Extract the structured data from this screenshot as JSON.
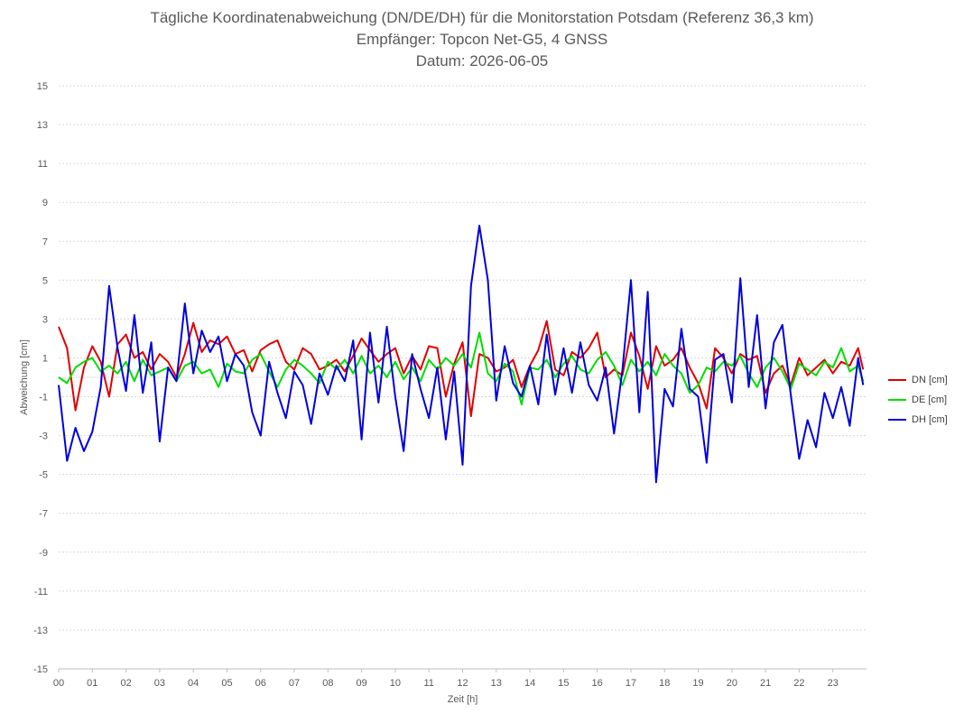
{
  "chart_data": {
    "type": "line",
    "title": "Tägliche Koordinatenabweichung (DN/DE/DH) für die Monitorstation Potsdam (Referenz 36,3 km)",
    "subtitle": "Empfänger: Topcon Net-G5, 4 GNSS",
    "date_line": "Datum: 2026-06-05",
    "xlabel": "Zeit [h]",
    "ylabel": "Abweichung [cm]",
    "xlim": [
      0,
      24
    ],
    "ylim": [
      -15,
      15
    ],
    "x_ticks": [
      "00",
      "01",
      "02",
      "03",
      "04",
      "05",
      "06",
      "07",
      "08",
      "09",
      "10",
      "11",
      "12",
      "13",
      "14",
      "15",
      "16",
      "17",
      "18",
      "19",
      "20",
      "21",
      "22",
      "23"
    ],
    "y_ticks": [
      "15",
      "13",
      "11",
      "9",
      "7",
      "5",
      "3",
      "1",
      "-1",
      "-3",
      "-5",
      "-7",
      "-9",
      "-11",
      "-13",
      "-15"
    ],
    "grid": "horizontal-dotted",
    "legend_position": "right",
    "series": [
      {
        "name": "DN [cm]",
        "color": "#e00000",
        "x": [
          0,
          0.25,
          0.5,
          0.75,
          1,
          1.25,
          1.5,
          1.75,
          2,
          2.25,
          2.5,
          2.75,
          3,
          3.25,
          3.5,
          3.75,
          4,
          4.25,
          4.5,
          4.75,
          5,
          5.25,
          5.5,
          5.75,
          6,
          6.25,
          6.5,
          6.75,
          7,
          7.25,
          7.5,
          7.75,
          8,
          8.25,
          8.5,
          8.75,
          9,
          9.25,
          9.5,
          9.75,
          10,
          10.25,
          10.5,
          10.75,
          11,
          11.25,
          11.5,
          11.75,
          12,
          12.25,
          12.5,
          12.75,
          13,
          13.25,
          13.5,
          13.75,
          14,
          14.25,
          14.5,
          14.75,
          15,
          15.25,
          15.5,
          15.75,
          16,
          16.25,
          16.5,
          16.75,
          17,
          17.25,
          17.5,
          17.75,
          18,
          18.25,
          18.5,
          18.75,
          19,
          19.25,
          19.5,
          19.75,
          20,
          20.25,
          20.5,
          20.75,
          21,
          21.25,
          21.5,
          21.75,
          22,
          22.25,
          22.5,
          22.75,
          23,
          23.25,
          23.5,
          23.75,
          23.9
        ],
        "y": [
          2.6,
          1.5,
          -1.7,
          0.5,
          1.6,
          0.8,
          -1.0,
          1.7,
          2.2,
          1.0,
          1.3,
          0.4,
          1.2,
          0.8,
          0.0,
          1.2,
          2.8,
          1.3,
          1.9,
          1.7,
          2.1,
          1.2,
          1.4,
          0.3,
          1.4,
          1.7,
          1.9,
          0.8,
          0.4,
          1.5,
          1.2,
          0.4,
          0.6,
          0.9,
          0.3,
          1.1,
          2.0,
          1.4,
          0.8,
          1.2,
          1.5,
          0.2,
          1.1,
          0.4,
          1.6,
          1.5,
          -1.0,
          0.7,
          1.8,
          -2.0,
          1.2,
          1.0,
          0.3,
          0.5,
          0.9,
          -0.5,
          0.6,
          1.4,
          2.9,
          0.4,
          0.1,
          1.3,
          1.0,
          1.5,
          2.3,
          0.0,
          0.4,
          0.1,
          2.3,
          1.1,
          -0.6,
          1.6,
          0.6,
          0.9,
          1.5,
          0.5,
          -0.3,
          -1.6,
          1.5,
          1.0,
          0.2,
          1.2,
          0.9,
          1.1,
          -0.8,
          0.2,
          0.6,
          -0.4,
          1.0,
          0.1,
          0.5,
          0.9,
          0.2,
          0.8,
          0.6,
          1.5,
          0.4
        ],
        "y_dummy": null
      },
      {
        "name": "DE [cm]",
        "color": "#00dd00",
        "x": [
          0,
          0.25,
          0.5,
          0.75,
          1,
          1.25,
          1.5,
          1.75,
          2,
          2.25,
          2.5,
          2.75,
          3,
          3.25,
          3.5,
          3.75,
          4,
          4.25,
          4.5,
          4.75,
          5,
          5.25,
          5.5,
          5.75,
          6,
          6.25,
          6.5,
          6.75,
          7,
          7.25,
          7.5,
          7.75,
          8,
          8.25,
          8.5,
          8.75,
          9,
          9.25,
          9.5,
          9.75,
          10,
          10.25,
          10.5,
          10.75,
          11,
          11.25,
          11.5,
          11.75,
          12,
          12.25,
          12.5,
          12.75,
          13,
          13.25,
          13.5,
          13.75,
          14,
          14.25,
          14.5,
          14.75,
          15,
          15.25,
          15.5,
          15.75,
          16,
          16.25,
          16.5,
          16.75,
          17,
          17.25,
          17.5,
          17.75,
          18,
          18.25,
          18.5,
          18.75,
          19,
          19.25,
          19.5,
          19.75,
          20,
          20.25,
          20.5,
          20.75,
          21,
          21.25,
          21.5,
          21.75,
          22,
          22.25,
          22.5,
          22.75,
          23,
          23.25,
          23.5,
          23.75,
          23.9
        ],
        "y": [
          0.0,
          -0.3,
          0.5,
          0.8,
          1.0,
          0.3,
          0.6,
          0.2,
          0.8,
          -0.2,
          0.9,
          0.1,
          0.3,
          0.5,
          -0.2,
          0.6,
          0.8,
          0.2,
          0.4,
          -0.5,
          0.7,
          0.3,
          0.2,
          0.9,
          1.2,
          0.3,
          -0.5,
          0.4,
          0.9,
          0.6,
          0.2,
          -0.3,
          0.8,
          0.4,
          0.9,
          0.2,
          1.1,
          0.2,
          0.6,
          0.0,
          0.8,
          -0.1,
          0.5,
          -0.2,
          0.9,
          0.4,
          1.0,
          0.6,
          1.2,
          0.5,
          2.3,
          0.2,
          -0.2,
          0.7,
          0.3,
          -1.4,
          0.5,
          0.4,
          0.9,
          0.0,
          0.7,
          1.1,
          0.4,
          0.2,
          0.9,
          1.3,
          0.6,
          -0.4,
          0.9,
          0.3,
          0.8,
          0.1,
          1.2,
          0.6,
          0.2,
          -0.8,
          -0.4,
          0.5,
          0.3,
          0.8,
          0.6,
          1.1,
          0.2,
          -0.5,
          0.5,
          1.0,
          0.3,
          -0.6,
          0.7,
          0.4,
          0.1,
          0.8,
          0.5,
          1.5,
          0.3,
          0.6,
          -0.2
        ],
        "y_dummy": null
      },
      {
        "name": "DH [cm]",
        "color": "#0000dd",
        "x": [
          0,
          0.25,
          0.5,
          0.75,
          1,
          1.25,
          1.5,
          1.75,
          2,
          2.25,
          2.5,
          2.75,
          3,
          3.25,
          3.5,
          3.75,
          4,
          4.25,
          4.5,
          4.75,
          5,
          5.25,
          5.5,
          5.75,
          6,
          6.25,
          6.5,
          6.75,
          7,
          7.25,
          7.5,
          7.75,
          8,
          8.25,
          8.5,
          8.75,
          9,
          9.25,
          9.5,
          9.75,
          10,
          10.25,
          10.5,
          10.75,
          11,
          11.25,
          11.5,
          11.75,
          12,
          12.25,
          12.5,
          12.75,
          13,
          13.25,
          13.5,
          13.75,
          14,
          14.25,
          14.5,
          14.75,
          15,
          15.25,
          15.5,
          15.75,
          16,
          16.25,
          16.5,
          16.75,
          17,
          17.25,
          17.5,
          17.75,
          18,
          18.25,
          18.5,
          18.75,
          19,
          19.25,
          19.5,
          19.75,
          20,
          20.25,
          20.5,
          20.75,
          21,
          21.25,
          21.5,
          21.75,
          22,
          22.25,
          22.5,
          22.75,
          23,
          23.25,
          23.5,
          23.75,
          23.9
        ],
        "y": [
          -0.4,
          -4.3,
          -2.6,
          -3.8,
          -2.8,
          -0.5,
          4.7,
          1.5,
          -0.7,
          3.2,
          -0.8,
          1.8,
          -3.3,
          0.5,
          -0.2,
          3.8,
          0.2,
          2.4,
          1.3,
          2.1,
          -0.2,
          1.2,
          0.6,
          -1.8,
          -3.0,
          0.8,
          -0.8,
          -2.1,
          0.3,
          -0.4,
          -2.4,
          0.2,
          -0.9,
          0.6,
          -0.2,
          1.9,
          -3.2,
          2.3,
          -1.3,
          2.6,
          -1.0,
          -3.8,
          1.2,
          -0.6,
          -2.1,
          0.5,
          -3.2,
          0.3,
          -4.5,
          4.7,
          7.8,
          5.0,
          -1.2,
          1.6,
          -0.3,
          -1.0,
          0.6,
          -1.4,
          2.2,
          -0.9,
          1.5,
          -0.8,
          1.8,
          -0.4,
          -1.2,
          0.5,
          -2.9,
          0.4,
          5.0,
          -1.8,
          4.4,
          -5.4,
          -0.6,
          -1.5,
          2.5,
          -0.6,
          -1.0,
          -4.4,
          0.9,
          1.2,
          -1.3,
          5.1,
          -0.5,
          3.2,
          -1.6,
          1.8,
          2.7,
          -0.9,
          -4.2,
          -2.2,
          -3.6,
          -0.8,
          -2.1,
          -0.5,
          -2.5,
          1.0,
          -0.4
        ],
        "y_dummy": null
      }
    ]
  }
}
